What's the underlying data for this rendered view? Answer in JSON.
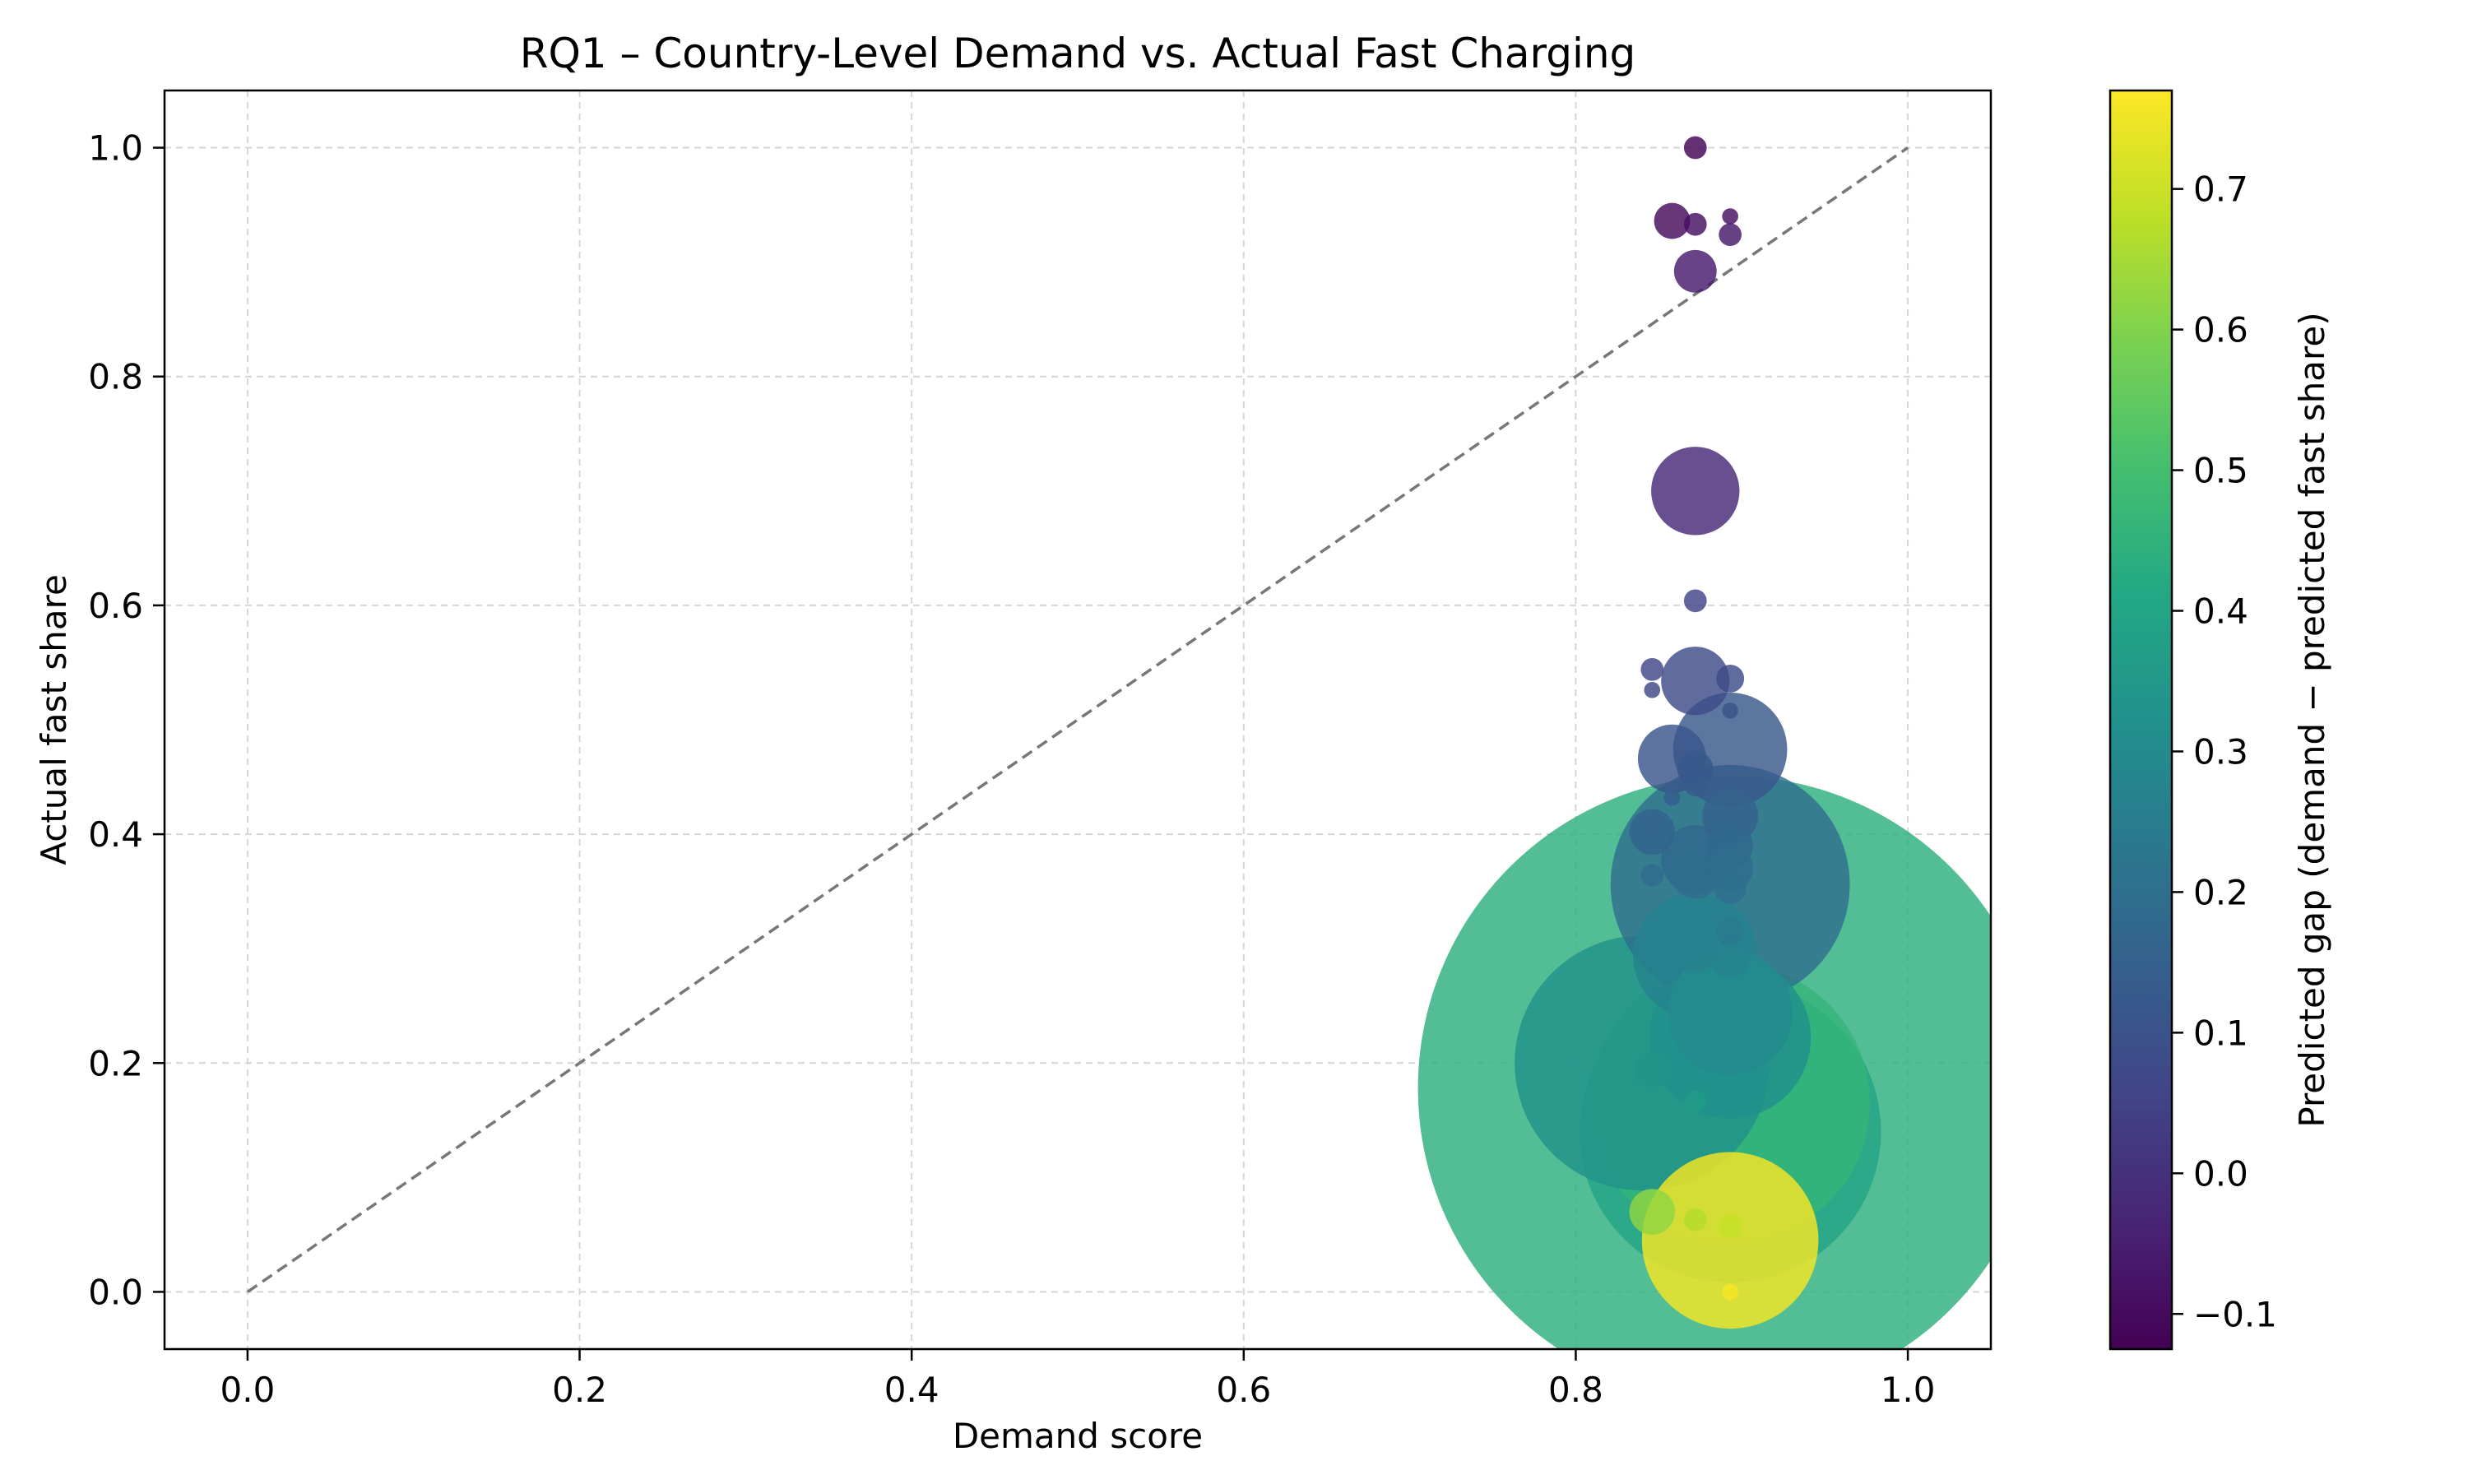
{
  "chart_data": {
    "type": "scatter",
    "title": "RQ1 – Country-Level Demand vs. Actual Fast Charging",
    "xlabel": "Demand score",
    "ylabel": "Actual fast share",
    "xlim": [
      -0.05,
      1.05
    ],
    "ylim": [
      -0.05,
      1.05
    ],
    "xticks": [
      0.0,
      0.2,
      0.4,
      0.6,
      0.8,
      1.0
    ],
    "yticks": [
      0.0,
      0.2,
      0.4,
      0.6,
      0.8,
      1.0
    ],
    "xtick_labels": [
      "0.0",
      "0.2",
      "0.4",
      "0.6",
      "0.8",
      "1.0"
    ],
    "ytick_labels": [
      "0.0",
      "0.2",
      "0.4",
      "0.6",
      "0.8",
      "1.0"
    ],
    "grid": true,
    "reference_line": {
      "style": "dashed",
      "color": "#777777",
      "x": [
        0.0,
        1.0
      ],
      "y": [
        0.0,
        1.0
      ]
    },
    "marker_size_encoding": "bubble area (relative)",
    "colormap": "viridis",
    "colorbar": {
      "label": "Predicted gap (demand − predicted fast share)",
      "range": [
        -0.125,
        0.77
      ],
      "ticks": [
        -0.1,
        0.0,
        0.1,
        0.2,
        0.3,
        0.4,
        0.5,
        0.6,
        0.7
      ],
      "tick_labels": [
        "−0.1",
        "0.0",
        "0.1",
        "0.2",
        "0.3",
        "0.4",
        "0.5",
        "0.6",
        "0.7"
      ]
    },
    "points": [
      {
        "x": 0.872,
        "y": 1.0,
        "size": 2,
        "gap": -0.12
      },
      {
        "x": 0.858,
        "y": 0.936,
        "size": 5,
        "gap": -0.1
      },
      {
        "x": 0.872,
        "y": 0.933,
        "size": 2,
        "gap": -0.09
      },
      {
        "x": 0.893,
        "y": 0.94,
        "size": 1,
        "gap": -0.09
      },
      {
        "x": 0.893,
        "y": 0.924,
        "size": 2,
        "gap": -0.07
      },
      {
        "x": 0.872,
        "y": 0.892,
        "size": 7,
        "gap": -0.06
      },
      {
        "x": 0.872,
        "y": 0.7,
        "size": 30,
        "gap": -0.02
      },
      {
        "x": 0.872,
        "y": 0.604,
        "size": 2,
        "gap": 0.05
      },
      {
        "x": 0.846,
        "y": 0.544,
        "size": 2,
        "gap": 0.06
      },
      {
        "x": 0.846,
        "y": 0.526,
        "size": 1,
        "gap": 0.07
      },
      {
        "x": 0.872,
        "y": 0.534,
        "size": 18,
        "gap": 0.08
      },
      {
        "x": 0.893,
        "y": 0.536,
        "size": 3,
        "gap": 0.08
      },
      {
        "x": 0.893,
        "y": 0.508,
        "size": 1,
        "gap": 0.1
      },
      {
        "x": 0.858,
        "y": 0.466,
        "size": 18,
        "gap": 0.11
      },
      {
        "x": 0.893,
        "y": 0.474,
        "size": 50,
        "gap": 0.12
      },
      {
        "x": 0.872,
        "y": 0.457,
        "size": 5,
        "gap": 0.12
      },
      {
        "x": 0.872,
        "y": 0.443,
        "size": 2,
        "gap": 0.13
      },
      {
        "x": 0.858,
        "y": 0.432,
        "size": 1,
        "gap": 0.14
      },
      {
        "x": 0.893,
        "y": 0.416,
        "size": 12,
        "gap": 0.15
      },
      {
        "x": 0.846,
        "y": 0.407,
        "size": 2,
        "gap": 0.16
      },
      {
        "x": 0.846,
        "y": 0.402,
        "size": 8,
        "gap": 0.16
      },
      {
        "x": 0.893,
        "y": 0.39,
        "size": 8,
        "gap": 0.18
      },
      {
        "x": 0.872,
        "y": 0.378,
        "size": 18,
        "gap": 0.18
      },
      {
        "x": 0.872,
        "y": 0.366,
        "size": 10,
        "gap": 0.19
      },
      {
        "x": 0.893,
        "y": 0.37,
        "size": 8,
        "gap": 0.19
      },
      {
        "x": 0.846,
        "y": 0.364,
        "size": 2,
        "gap": 0.19
      },
      {
        "x": 0.893,
        "y": 0.356,
        "size": 220,
        "gap": 0.2
      },
      {
        "x": 0.893,
        "y": 0.353,
        "size": 4,
        "gap": 0.2
      },
      {
        "x": 0.893,
        "y": 0.315,
        "size": 3,
        "gap": 0.24
      },
      {
        "x": 0.872,
        "y": 0.294,
        "size": 60,
        "gap": 0.27
      },
      {
        "x": 0.872,
        "y": 0.3,
        "size": 8,
        "gap": 0.26
      },
      {
        "x": 0.893,
        "y": 0.292,
        "size": 6,
        "gap": 0.27
      },
      {
        "x": 0.893,
        "y": 0.244,
        "size": 60,
        "gap": 0.3
      },
      {
        "x": 0.872,
        "y": 0.232,
        "size": 8,
        "gap": 0.31
      },
      {
        "x": 0.893,
        "y": 0.222,
        "size": 100,
        "gap": 0.32
      },
      {
        "x": 0.84,
        "y": 0.2,
        "size": 250,
        "gap": 0.33
      },
      {
        "x": 0.846,
        "y": 0.194,
        "size": 5,
        "gap": 0.34
      },
      {
        "x": 0.872,
        "y": 0.166,
        "size": 2,
        "gap": 0.36
      },
      {
        "x": 0.893,
        "y": 0.178,
        "size": 1500,
        "gap": 0.44
      },
      {
        "x": 0.893,
        "y": 0.165,
        "size": 300,
        "gap": 0.46
      },
      {
        "x": 0.893,
        "y": 0.14,
        "size": 350,
        "gap": 0.4
      },
      {
        "x": 0.846,
        "y": 0.07,
        "size": 8,
        "gap": 0.62
      },
      {
        "x": 0.872,
        "y": 0.063,
        "size": 2,
        "gap": 0.67
      },
      {
        "x": 0.893,
        "y": 0.057,
        "size": 2,
        "gap": 0.69
      },
      {
        "x": 0.893,
        "y": 0.045,
        "size": 120,
        "gap": 0.76
      },
      {
        "x": 0.893,
        "y": 0.0,
        "size": 1,
        "gap": 0.76
      }
    ]
  }
}
